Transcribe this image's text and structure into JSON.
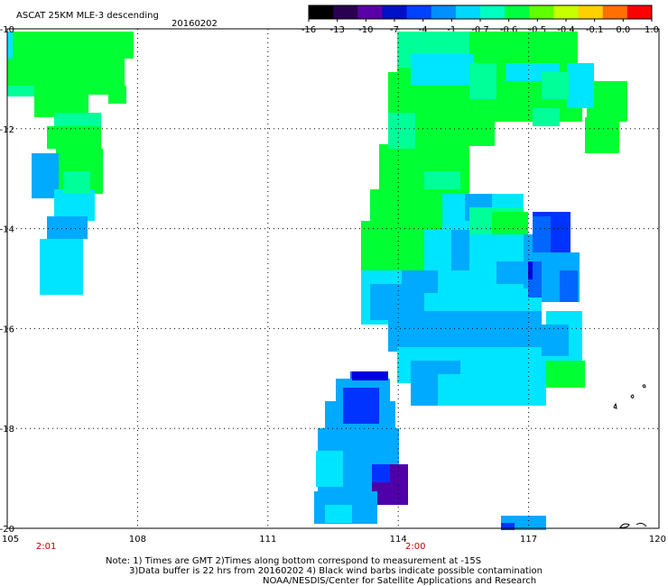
{
  "header": {
    "title": "ASCAT 25KM MLE-3 descending",
    "date": "20160202"
  },
  "colorbar": {
    "labels": [
      "-16",
      "-13",
      "-10",
      "-7",
      "-4",
      "-1",
      "-0.7",
      "-0.6",
      "-0.5",
      "-0.4",
      "-0.1",
      "0.0",
      "1.0"
    ],
    "colors": [
      "#000000",
      "#2a0050",
      "#5a00a8",
      "#0010c8",
      "#0040ff",
      "#0090ff",
      "#00d8ff",
      "#00ffc0",
      "#00ff40",
      "#60ff00",
      "#c8ff00",
      "#ffd000",
      "#ff7000",
      "#ff0000"
    ]
  },
  "map": {
    "lat_labels": [
      "-10",
      "-12",
      "-14",
      "-16",
      "-18",
      "-20"
    ],
    "lon_labels": [
      "105",
      "108",
      "111",
      "114",
      "117",
      "120"
    ],
    "lat_range": [
      -20,
      -10
    ],
    "lon_range": [
      105,
      120
    ],
    "swath_times": [
      "2:01",
      "2:00"
    ],
    "swath_time_lons": [
      106,
      114.5
    ],
    "value_colors": {
      "green": "#00ff33",
      "teal": "#00ff99",
      "cyan": "#00e5ff",
      "cyan_light": "#00f0f0",
      "blue_light": "#00aaff",
      "blue_mid": "#0066ff",
      "blue": "#0033ff",
      "navy": "#0000dd",
      "purple": "#5000a8"
    }
  },
  "notes": {
    "line1": "Note: 1) Times are GMT 2)Times along bottom correspond to measurement at -15S",
    "line2": "3)Data buffer is 22 hrs from 20160202 4) Black wind barbs indicate possible contamination",
    "line3": "NOAA/NESDIS/Center for Satellite Applications and Research"
  }
}
